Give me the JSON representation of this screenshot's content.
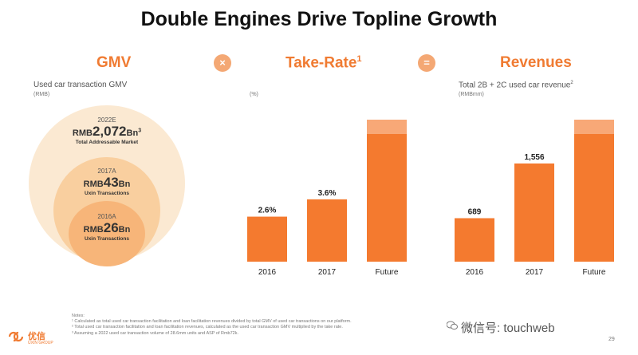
{
  "title": "Double Engines Drive Topline Growth",
  "sections": {
    "gmv": "GMV",
    "take_rate": "Take-Rate",
    "take_rate_sup": "1",
    "revenues": "Revenues",
    "times": "×",
    "equals": "="
  },
  "gmv": {
    "subtitle": "Used car transaction GMV",
    "unit": "(RMB)",
    "circles": [
      {
        "year": "2022E",
        "prefix": "RMB",
        "amount": "2,072",
        "suffix": "Bn",
        "sup": "3",
        "desc": "Total Addressable Market"
      },
      {
        "year": "2017A",
        "prefix": "RMB",
        "amount": "43",
        "suffix": "Bn",
        "sup": "",
        "desc": "Uxin Transactions"
      },
      {
        "year": "2016A",
        "prefix": "RMB",
        "amount": "26",
        "suffix": "Bn",
        "sup": "",
        "desc": "Uxin Transactions"
      }
    ]
  },
  "colors": {
    "accent": "#f07b32",
    "bar": "#f47a2f",
    "circle_outer": "#fbe9d2",
    "circle_mid": "#f9cf9f",
    "circle_inner": "#f7b579",
    "operator": "#f4a874"
  },
  "chart_data": [
    {
      "type": "bar",
      "title": "Take-Rate",
      "ylabel": "(%)",
      "categories": [
        "2016",
        "2017",
        "Future"
      ],
      "values": [
        2.6,
        3.6,
        null
      ],
      "data_labels": [
        "2.6%",
        "3.6%",
        ""
      ],
      "future_extends": true
    },
    {
      "type": "bar",
      "title": "Revenues",
      "subtitle": "Total 2B + 2C used car revenue",
      "subtitle_sup": "2",
      "ylabel": "(RMBmm)",
      "categories": [
        "2016",
        "2017",
        "Future"
      ],
      "values": [
        689,
        1556,
        null
      ],
      "data_labels": [
        "689",
        "1,556",
        ""
      ],
      "future_extends": true
    }
  ],
  "notes": {
    "heading": "Notes:",
    "lines": [
      "¹ Calculated as total used car transaction facilitation and loan facilitation revenues divided by total GMV of used car transactions on our platform.",
      "² Total used car transaction facilitation and loan facilitation revenues, calculated as the used car transaction GMV multiplied by the take rate.",
      "³ Assuming a 2022 used car transaction volume of 28.6mm units and ASP of Rmb72k."
    ]
  },
  "logo": {
    "name": "优信",
    "sub": "UXIN GROUP"
  },
  "watermark": "微信号: touchweb",
  "page_number": "29"
}
